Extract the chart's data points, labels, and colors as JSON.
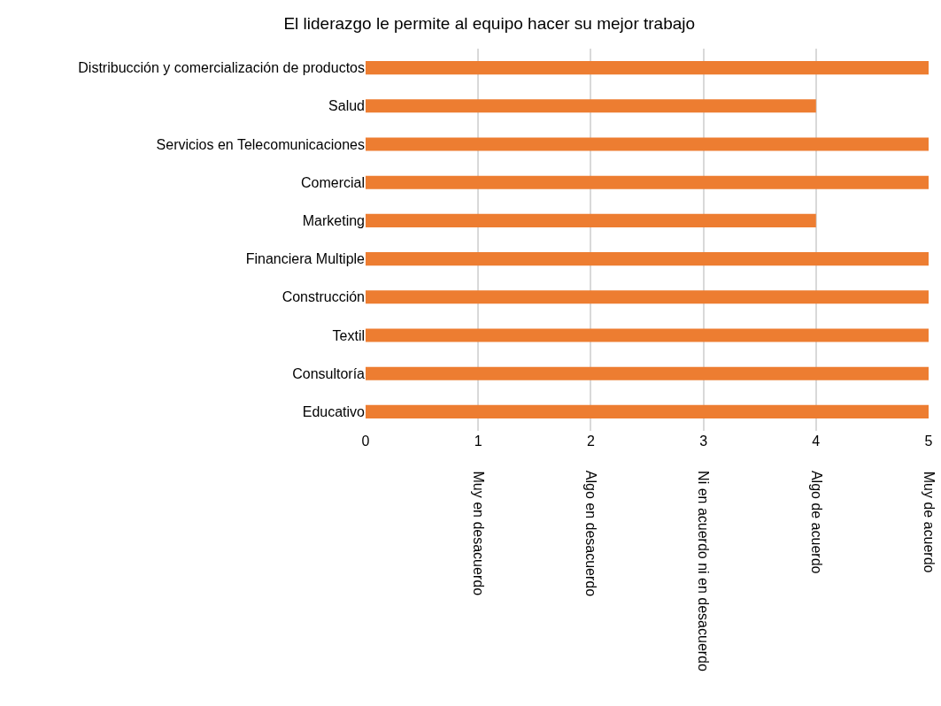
{
  "chart_data": {
    "type": "bar",
    "orientation": "horizontal",
    "title": "El liderazgo le permite al equipo hacer su mejor trabajo",
    "categories": [
      "Distribucción y comercialización de productos",
      "Salud",
      "Servicios en Telecomunicaciones",
      "Comercial",
      "Marketing",
      "Financiera Multiple",
      "Construcción",
      "Textil",
      "Consultoría",
      "Educativo"
    ],
    "values": [
      5,
      4,
      5,
      5,
      4,
      5,
      5,
      5,
      5,
      5
    ],
    "color": "#ed7d31",
    "xlim": [
      0,
      5
    ],
    "xticks": [
      0,
      1,
      2,
      3,
      4,
      5
    ],
    "grid": "x",
    "annotations": [
      "Muy en desacuerdo",
      "Algo en desacuerdo",
      "Ni en acuerdo ni en desacuerdo",
      "Algo de acuerdo",
      "Muy de acuerdo"
    ]
  }
}
